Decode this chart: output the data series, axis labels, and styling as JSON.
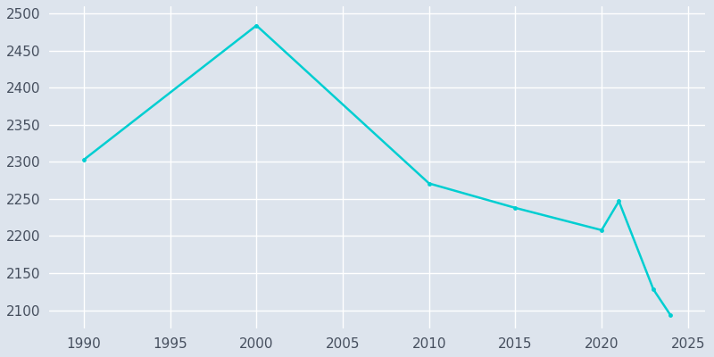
{
  "years": [
    1990,
    2000,
    2010,
    2015,
    2020,
    2021,
    2023,
    2024
  ],
  "population": [
    2303,
    2484,
    2271,
    2238,
    2208,
    2247,
    2128,
    2093
  ],
  "line_color": "#00CED1",
  "plot_bg_color": "#dde4ed",
  "fig_bg_color": "#dde4ed",
  "xlabel": "",
  "ylabel": "",
  "xlim": [
    1988,
    2026
  ],
  "ylim": [
    2075,
    2510
  ],
  "xticks": [
    1990,
    1995,
    2000,
    2005,
    2010,
    2015,
    2020,
    2025
  ],
  "yticks": [
    2100,
    2150,
    2200,
    2250,
    2300,
    2350,
    2400,
    2450,
    2500
  ],
  "grid_color": "#ffffff",
  "tick_color": "#464f5e",
  "line_width": 1.8,
  "marker": "o",
  "marker_size": 3.5,
  "tick_fontsize": 11
}
